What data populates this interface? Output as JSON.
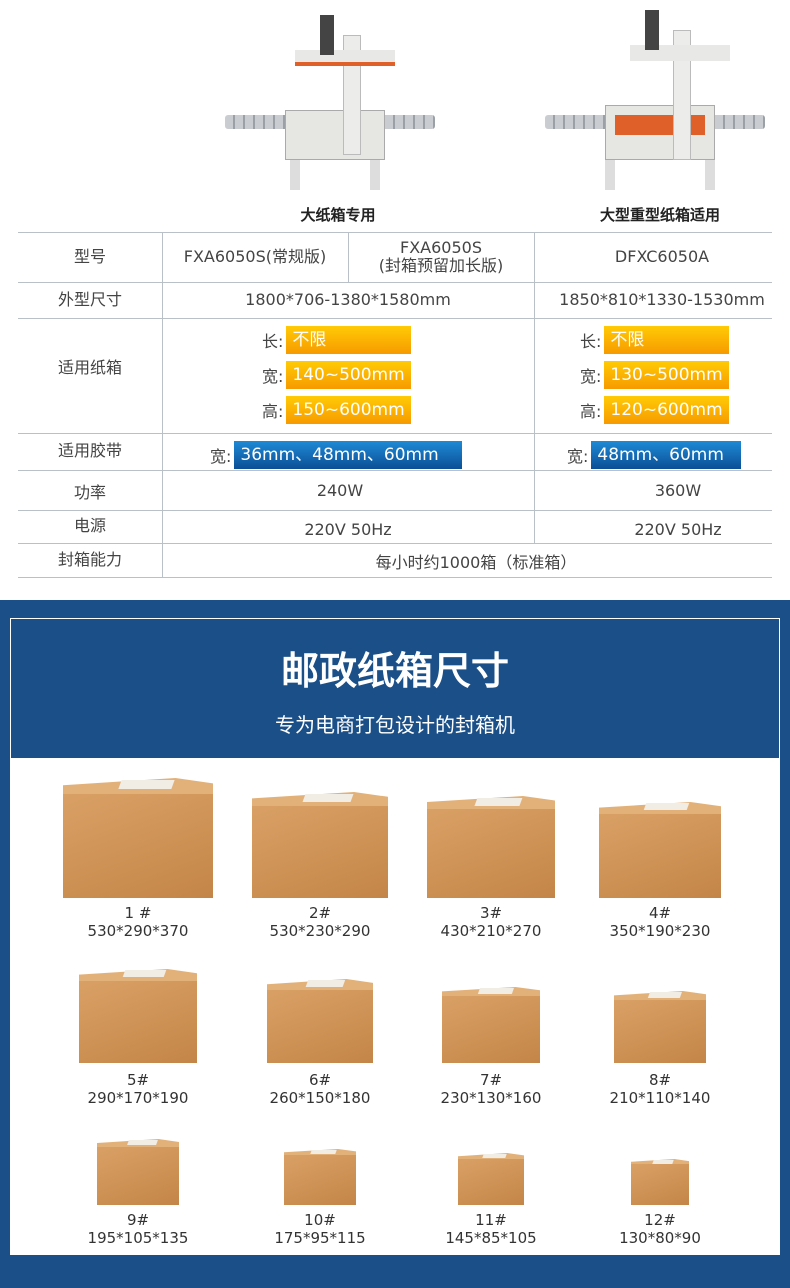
{
  "machines": [
    {
      "caption": "大纸箱专用"
    },
    {
      "caption": "大型重型纸箱适用"
    }
  ],
  "table": {
    "model": {
      "label": "型号",
      "v1": "FXA6050S(常规版)",
      "v2a": "FXA6050S",
      "v2b": "(封箱预留加长版)",
      "v3": "DFXC6050A"
    },
    "size": {
      "label": "外型尺寸",
      "v1": "1800*706-1380*1580mm",
      "v2": "1850*810*1330-1530mm"
    },
    "box": {
      "label": "适用纸箱",
      "len": "长:",
      "wid": "宽:",
      "hei": "高:",
      "a": [
        "不限",
        "140~500mm",
        "150~600mm"
      ],
      "b": [
        "不限",
        "130~500mm",
        "120~600mm"
      ]
    },
    "tape": {
      "label": "适用胶带",
      "wid": "宽:",
      "a": "36mm、48mm、60mm",
      "b": "48mm、60mm"
    },
    "power": {
      "label": "功率",
      "a": "240W",
      "b": "360W"
    },
    "supply": {
      "label": "电源",
      "a": "220V 50Hz",
      "b": "220V 50Hz"
    },
    "capacity": {
      "label": "封箱能力",
      "v": "每小时约1000箱（标准箱）"
    }
  },
  "section": {
    "title": "邮政纸箱尺寸",
    "subtitle": "专为电商打包设计的封箱机"
  },
  "boxes": [
    {
      "no": "1 #",
      "dim": "530*290*370"
    },
    {
      "no": "2#",
      "dim": "530*230*290"
    },
    {
      "no": "3#",
      "dim": "430*210*270"
    },
    {
      "no": "4#",
      "dim": "350*190*230"
    },
    {
      "no": "5#",
      "dim": "290*170*190"
    },
    {
      "no": "6#",
      "dim": "260*150*180"
    },
    {
      "no": "7#",
      "dim": "230*130*160"
    },
    {
      "no": "8#",
      "dim": "210*110*140"
    },
    {
      "no": "9#",
      "dim": "195*105*135"
    },
    {
      "no": "10#",
      "dim": "175*95*115"
    },
    {
      "no": "11#",
      "dim": "145*85*105"
    },
    {
      "no": "12#",
      "dim": "130*80*90"
    }
  ],
  "colors": {
    "blue": "#1b4f88",
    "orange": "#f79a00",
    "tapeBlue": "#0b4f95",
    "cardboard": "#c98c4e"
  }
}
